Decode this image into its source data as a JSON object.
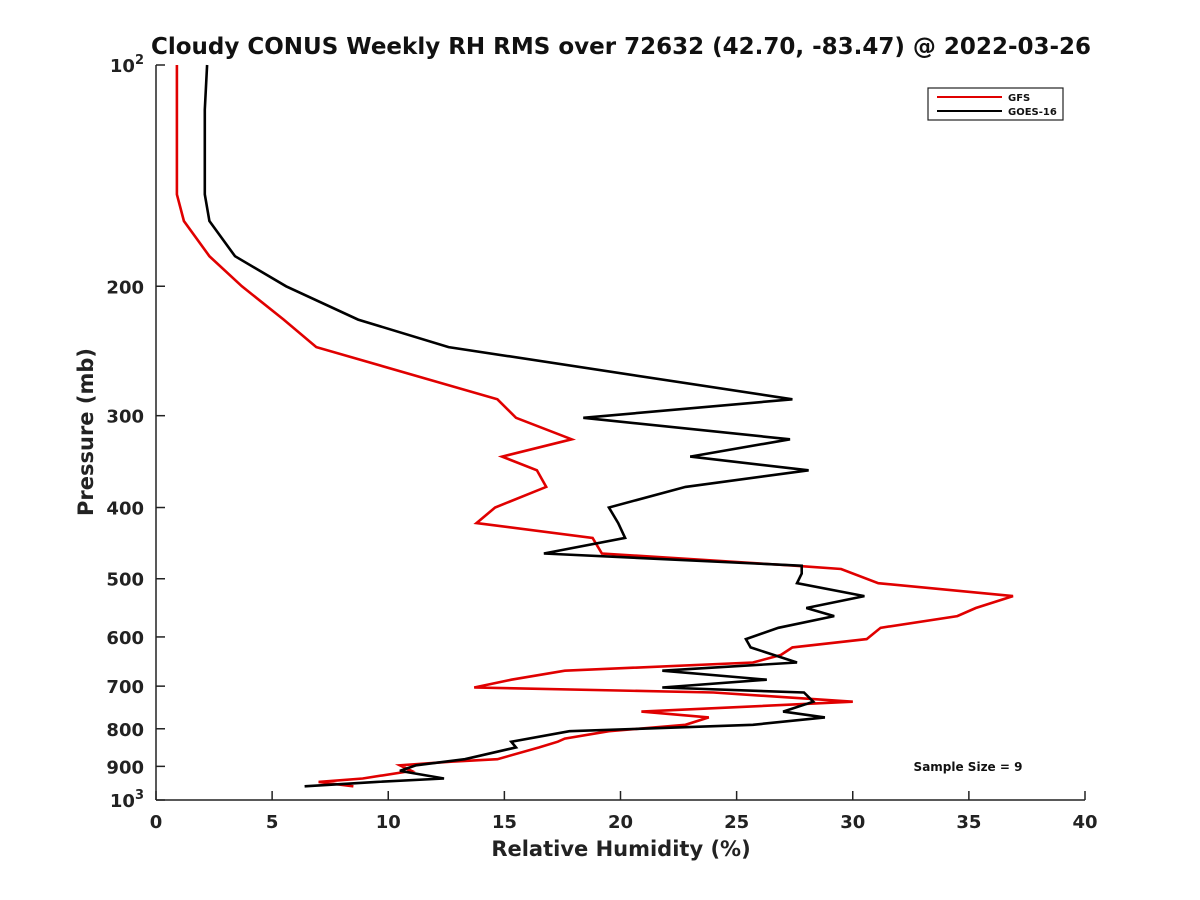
{
  "chart_data": {
    "type": "line",
    "title": "Cloudy CONUS Weekly RH RMS over 72632 (42.70, -83.47) @ 2022-03-26",
    "xlabel": "Relative Humidity (%)",
    "ylabel": "Pressure (mb)",
    "xlim": [
      0,
      40
    ],
    "ylim": [
      100,
      1000
    ],
    "y_scale": "log",
    "y_reversed": true,
    "x_ticks": [
      "0",
      "5",
      "10",
      "15",
      "20",
      "25",
      "30",
      "35",
      "40"
    ],
    "y_ticks": [
      {
        "value": 100,
        "label": "10",
        "sup": "2"
      },
      {
        "value": 200,
        "label": "200",
        "sup": ""
      },
      {
        "value": 300,
        "label": "300",
        "sup": ""
      },
      {
        "value": 400,
        "label": "400",
        "sup": ""
      },
      {
        "value": 500,
        "label": "500",
        "sup": ""
      },
      {
        "value": 600,
        "label": "600",
        "sup": ""
      },
      {
        "value": 700,
        "label": "700",
        "sup": ""
      },
      {
        "value": 800,
        "label": "800",
        "sup": ""
      },
      {
        "value": 900,
        "label": "900",
        "sup": ""
      },
      {
        "value": 1000,
        "label": "10",
        "sup": "3"
      }
    ],
    "grid": false,
    "legend_position": "top-right",
    "annotation": "Sample Size = 9",
    "series": [
      {
        "name": "GFS",
        "color": "#e00000",
        "points": [
          [
            0.9,
            100
          ],
          [
            0.9,
            115
          ],
          [
            0.9,
            132
          ],
          [
            0.9,
            150
          ],
          [
            1.2,
            163
          ],
          [
            2.3,
            182
          ],
          [
            3.7,
            200
          ],
          [
            5.5,
            222
          ],
          [
            6.9,
            242
          ],
          [
            14.7,
            285
          ],
          [
            15.5,
            302
          ],
          [
            17.9,
            323
          ],
          [
            14.9,
            341
          ],
          [
            16.4,
            356
          ],
          [
            16.8,
            375
          ],
          [
            14.6,
            400
          ],
          [
            13.8,
            420
          ],
          [
            18.8,
            440
          ],
          [
            19.2,
            462
          ],
          [
            27.5,
            480
          ],
          [
            29.5,
            485
          ],
          [
            31.1,
            507
          ],
          [
            36.9,
            528
          ],
          [
            35.3,
            548
          ],
          [
            34.5,
            562
          ],
          [
            31.2,
            583
          ],
          [
            30.6,
            604
          ],
          [
            27.4,
            620
          ],
          [
            26.9,
            635
          ],
          [
            25.7,
            650
          ],
          [
            17.6,
            667
          ],
          [
            15.3,
            686
          ],
          [
            13.7,
            703
          ],
          [
            24.0,
            714
          ],
          [
            30.0,
            735
          ],
          [
            20.9,
            758
          ],
          [
            23.8,
            772
          ],
          [
            22.8,
            790
          ],
          [
            19.5,
            806
          ],
          [
            17.6,
            825
          ],
          [
            17.3,
            833
          ],
          [
            16.5,
            848
          ],
          [
            14.7,
            880
          ],
          [
            12.7,
            887
          ],
          [
            10.5,
            897
          ],
          [
            11.0,
            913
          ],
          [
            8.9,
            935
          ],
          [
            7.0,
            945
          ],
          [
            8.5,
            958
          ]
        ]
      },
      {
        "name": "GOES-16",
        "color": "#000000",
        "points": [
          [
            2.2,
            100
          ],
          [
            2.1,
            115
          ],
          [
            2.1,
            132
          ],
          [
            2.1,
            150
          ],
          [
            2.3,
            163
          ],
          [
            3.4,
            182
          ],
          [
            5.6,
            200
          ],
          [
            8.7,
            222
          ],
          [
            12.6,
            242
          ],
          [
            27.4,
            285
          ],
          [
            18.4,
            302
          ],
          [
            27.3,
            323
          ],
          [
            23.0,
            341
          ],
          [
            28.1,
            356
          ],
          [
            22.8,
            375
          ],
          [
            19.5,
            400
          ],
          [
            19.9,
            420
          ],
          [
            20.2,
            440
          ],
          [
            16.7,
            462
          ],
          [
            27.8,
            480
          ],
          [
            27.8,
            492
          ],
          [
            27.6,
            507
          ],
          [
            30.5,
            528
          ],
          [
            28.0,
            548
          ],
          [
            29.2,
            562
          ],
          [
            26.8,
            583
          ],
          [
            25.4,
            604
          ],
          [
            25.6,
            620
          ],
          [
            27.6,
            650
          ],
          [
            21.8,
            667
          ],
          [
            26.3,
            686
          ],
          [
            21.8,
            703
          ],
          [
            27.9,
            714
          ],
          [
            28.3,
            735
          ],
          [
            27.0,
            758
          ],
          [
            28.8,
            772
          ],
          [
            25.7,
            790
          ],
          [
            17.8,
            806
          ],
          [
            15.3,
            833
          ],
          [
            15.5,
            848
          ],
          [
            13.3,
            880
          ],
          [
            11.2,
            897
          ],
          [
            10.5,
            913
          ],
          [
            12.4,
            935
          ],
          [
            9.5,
            945
          ],
          [
            6.4,
            958
          ]
        ]
      }
    ]
  }
}
